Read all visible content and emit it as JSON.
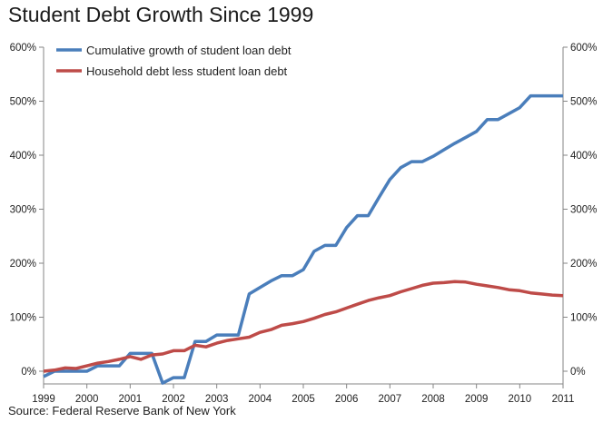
{
  "chart_data": {
    "type": "line",
    "title": "Student Debt Growth Since 1999",
    "source": "Source: Federal Reserve Bank of New York",
    "xlim": [
      1999,
      2011
    ],
    "ylim": [
      -20,
      600
    ],
    "x_ticks": [
      1999,
      2000,
      2001,
      2002,
      2003,
      2004,
      2005,
      2006,
      2007,
      2008,
      2009,
      2010,
      2011
    ],
    "x_tick_labels": [
      "1999",
      "2000",
      "2001",
      "2002",
      "2003",
      "2004",
      "2005",
      "2006",
      "2007",
      "2008",
      "2009",
      "2010",
      "2011"
    ],
    "y_ticks": [
      0,
      100,
      200,
      300,
      400,
      500,
      600
    ],
    "y_tick_labels": [
      "0%",
      "100%",
      "200%",
      "300%",
      "400%",
      "500%",
      "600%"
    ],
    "y_ticks_right": true,
    "grid": false,
    "legend_position": "top-left",
    "series": [
      {
        "name": "Cumulative growth of student loan debt",
        "color": "#4a7ebb",
        "x": [
          1999.0,
          1999.25,
          1999.5,
          1999.75,
          2000.0,
          2000.25,
          2000.5,
          2000.75,
          2001.0,
          2001.25,
          2001.5,
          2001.75,
          2002.0,
          2002.25,
          2002.5,
          2002.75,
          2003.0,
          2003.25,
          2003.5,
          2003.75,
          2004.0,
          2004.25,
          2004.5,
          2004.75,
          2005.0,
          2005.25,
          2005.5,
          2005.75,
          2006.0,
          2006.25,
          2006.5,
          2006.75,
          2007.0,
          2007.25,
          2007.5,
          2007.75,
          2008.0,
          2008.25,
          2008.5,
          2008.75,
          2009.0,
          2009.25,
          2009.5,
          2009.75,
          2010.0,
          2010.25,
          2010.5,
          2010.75,
          2011.0
        ],
        "y": [
          -10,
          0,
          0,
          0,
          0,
          10,
          10,
          10,
          33,
          33,
          33,
          -22,
          -12,
          -12,
          55,
          55,
          67,
          67,
          67,
          143,
          155,
          167,
          177,
          177,
          188,
          222,
          233,
          233,
          266,
          288,
          288,
          322,
          355,
          377,
          388,
          388,
          398,
          410,
          422,
          433,
          444,
          466,
          466,
          477,
          488,
          510,
          510,
          510,
          510
        ]
      },
      {
        "name": "Household debt less student loan debt",
        "color": "#be4b48",
        "x": [
          1999.0,
          1999.25,
          1999.5,
          1999.75,
          2000.0,
          2000.25,
          2000.5,
          2000.75,
          2001.0,
          2001.25,
          2001.5,
          2001.75,
          2002.0,
          2002.25,
          2002.5,
          2002.75,
          2003.0,
          2003.25,
          2003.5,
          2003.75,
          2004.0,
          2004.25,
          2004.5,
          2004.75,
          2005.0,
          2005.25,
          2005.5,
          2005.75,
          2006.0,
          2006.25,
          2006.5,
          2006.75,
          2007.0,
          2007.25,
          2007.5,
          2007.75,
          2008.0,
          2008.25,
          2008.5,
          2008.75,
          2009.0,
          2009.25,
          2009.5,
          2009.75,
          2010.0,
          2010.25,
          2010.5,
          2010.75,
          2011.0
        ],
        "y": [
          0,
          2,
          6,
          5,
          10,
          15,
          18,
          22,
          27,
          22,
          30,
          32,
          38,
          38,
          48,
          45,
          52,
          57,
          60,
          63,
          72,
          77,
          85,
          88,
          92,
          98,
          105,
          110,
          117,
          124,
          131,
          136,
          140,
          147,
          153,
          159,
          163,
          164,
          166,
          165,
          161,
          158,
          155,
          151,
          149,
          145,
          143,
          141,
          140
        ]
      }
    ]
  }
}
